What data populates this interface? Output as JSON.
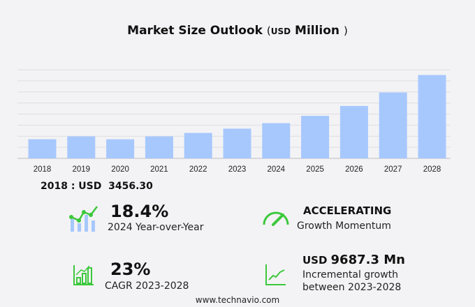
{
  "title": {
    "main": "Market Size Outlook",
    "open": "(",
    "unit": "USD",
    "scale": "Million",
    "close": ")"
  },
  "chart_data": {
    "type": "bar",
    "categories": [
      "2018",
      "2019",
      "2020",
      "2021",
      "2022",
      "2023",
      "2024",
      "2025",
      "2026",
      "2027",
      "2028"
    ],
    "values": [
      3456.3,
      3970,
      3450,
      3970,
      4600,
      5370,
      6360,
      7680,
      9470,
      11900,
      15060
    ],
    "ylim": [
      0,
      16000
    ],
    "grid": true,
    "bar_color": "#a7c8fd",
    "xlabel": "",
    "ylabel": ""
  },
  "base_label": "2018 : USD  3456.30",
  "stats": {
    "yoy": {
      "value": "18.4%",
      "label": "2024 Year-over-Year",
      "icon": "growth-chart-icon"
    },
    "momentum": {
      "value": "ACCELERATING",
      "label": "Growth Momentum",
      "icon": "speedometer-icon"
    },
    "cagr": {
      "value": "23%",
      "label": "CAGR 2023-2028",
      "icon": "bar-chart-icon"
    },
    "incremental": {
      "unit": "USD",
      "value": "9687.3 Mn",
      "label1": "Incremental growth",
      "label2": "between 2023-2028",
      "icon": "trend-line-icon"
    }
  },
  "accent_color": "#3cc83c",
  "footer": "www.technavio.com"
}
